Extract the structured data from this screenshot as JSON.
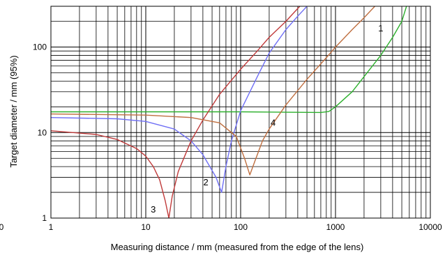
{
  "chart_data": {
    "type": "line",
    "xscale": "log",
    "yscale": "log",
    "xlim": [
      1,
      10000
    ],
    "ylim": [
      1,
      300
    ],
    "grid": true,
    "xlabel": "Measuring distance / mm (measured from the edge of the lens)",
    "ylabel": "Target diameter / mm (95%)",
    "x_ticks": [
      "1",
      "10",
      "100",
      "1000",
      "10000"
    ],
    "y_ticks": [
      "1",
      "10",
      "100"
    ],
    "left_edge_label": "0",
    "colors": {
      "axis": "#000000",
      "grid": "#000000"
    },
    "series": [
      {
        "name": "1",
        "color": "#2db02d",
        "points": [
          [
            1,
            17.5
          ],
          [
            10,
            17.5
          ],
          [
            100,
            17.5
          ],
          [
            300,
            17.3
          ],
          [
            700,
            17.2
          ],
          [
            850,
            17.6
          ],
          [
            1000,
            20
          ],
          [
            1500,
            30
          ],
          [
            2000,
            45
          ],
          [
            3000,
            80
          ],
          [
            4000,
            130
          ],
          [
            5000,
            200
          ],
          [
            5600,
            300
          ]
        ]
      },
      {
        "name": "2",
        "color": "#6f6ff5",
        "points": [
          [
            1,
            15
          ],
          [
            5,
            14.5
          ],
          [
            10,
            13.5
          ],
          [
            20,
            11
          ],
          [
            30,
            8
          ],
          [
            40,
            5.5
          ],
          [
            55,
            3
          ],
          [
            63,
            2
          ],
          [
            70,
            4
          ],
          [
            80,
            8
          ],
          [
            100,
            18
          ],
          [
            150,
            45
          ],
          [
            200,
            85
          ],
          [
            300,
            160
          ],
          [
            400,
            230
          ],
          [
            500,
            300
          ]
        ]
      },
      {
        "name": "3",
        "color": "#c03a3a",
        "points": [
          [
            1,
            10.5
          ],
          [
            3,
            9.5
          ],
          [
            5,
            8.3
          ],
          [
            8,
            6.5
          ],
          [
            10,
            5.3
          ],
          [
            12,
            4
          ],
          [
            14,
            2.8
          ],
          [
            16,
            1.6
          ],
          [
            17.5,
            1
          ],
          [
            19,
            1.8
          ],
          [
            22,
            3.5
          ],
          [
            30,
            8
          ],
          [
            40,
            14
          ],
          [
            60,
            28
          ],
          [
            100,
            55
          ],
          [
            150,
            90
          ],
          [
            200,
            130
          ],
          [
            300,
            200
          ],
          [
            420,
            300
          ]
        ]
      },
      {
        "name": "4",
        "color": "#bf6f40",
        "points": [
          [
            1,
            16.5
          ],
          [
            10,
            16
          ],
          [
            30,
            15
          ],
          [
            60,
            13
          ],
          [
            90,
            9
          ],
          [
            110,
            5
          ],
          [
            125,
            3.2
          ],
          [
            140,
            4.5
          ],
          [
            170,
            8
          ],
          [
            200,
            11
          ],
          [
            300,
            21
          ],
          [
            500,
            42
          ],
          [
            800,
            75
          ],
          [
            1000,
            100
          ],
          [
            1500,
            160
          ],
          [
            2000,
            220
          ],
          [
            2600,
            300
          ]
        ]
      }
    ],
    "curve_labels": [
      {
        "text": "1",
        "x": 3000,
        "y": 165
      },
      {
        "text": "2",
        "x": 43,
        "y": 2.6
      },
      {
        "text": "3",
        "x": 12,
        "y": 1.25
      },
      {
        "text": "4",
        "x": 220,
        "y": 13
      }
    ]
  }
}
